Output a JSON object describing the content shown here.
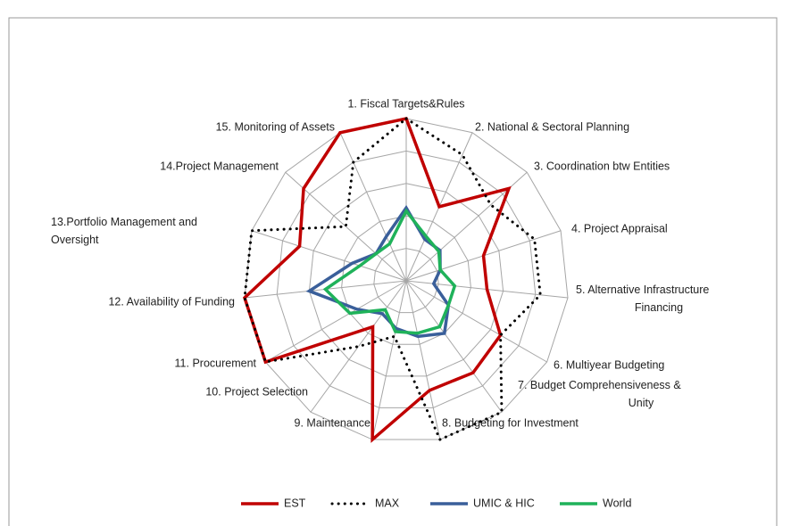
{
  "chart_data": {
    "type": "radar",
    "categories": [
      "1. Fiscal Targets&Rules",
      "2. National & Sectoral Planning",
      "3. Coordination btw Entities",
      "4. Project Appraisal",
      "5. Alternative Infrastructure\nFinancing",
      "6. Multiyear Budgeting",
      "7. Budget Comprehensiveness &\nUnity",
      "8. Budgeting for Investment",
      "9. Maintenance",
      "10. Project Selection",
      "11. Procurement",
      "12. Availability of Funding",
      "13.Portfolio Management and\nOversight",
      "14.Project Management",
      "15. Monitoring of Assets"
    ],
    "series": [
      {
        "name": "EST",
        "color": "#c00000",
        "dash": "solid",
        "values": [
          1.0,
          0.5,
          0.85,
          0.5,
          0.5,
          0.67,
          0.7,
          0.69,
          1.0,
          0.35,
          1.0,
          1.0,
          0.69,
          0.85,
          1.0
        ]
      },
      {
        "name": "MAX",
        "color": "#000000",
        "dash": "dotted",
        "values": [
          1.0,
          0.85,
          0.7,
          0.83,
          0.83,
          0.67,
          1.0,
          1.0,
          0.35,
          0.5,
          1.0,
          1.0,
          1.0,
          0.5,
          0.8
        ]
      },
      {
        "name": "UMIC & HIC",
        "color": "#3a5f9a",
        "dash": "solid",
        "values": [
          0.45,
          0.28,
          0.28,
          0.22,
          0.17,
          0.3,
          0.4,
          0.35,
          0.3,
          0.25,
          0.35,
          0.6,
          0.35,
          0.25,
          0.3
        ]
      },
      {
        "name": "World",
        "color": "#1fb25a",
        "dash": "solid",
        "values": [
          0.43,
          0.3,
          0.27,
          0.22,
          0.3,
          0.3,
          0.35,
          0.33,
          0.32,
          0.22,
          0.4,
          0.5,
          0.3,
          0.25,
          0.25
        ]
      }
    ],
    "rlim": [
      0,
      1
    ],
    "rticks": [
      0.2,
      0.4,
      0.6,
      0.8,
      1.0
    ],
    "grid": true,
    "legend": "bottom"
  }
}
